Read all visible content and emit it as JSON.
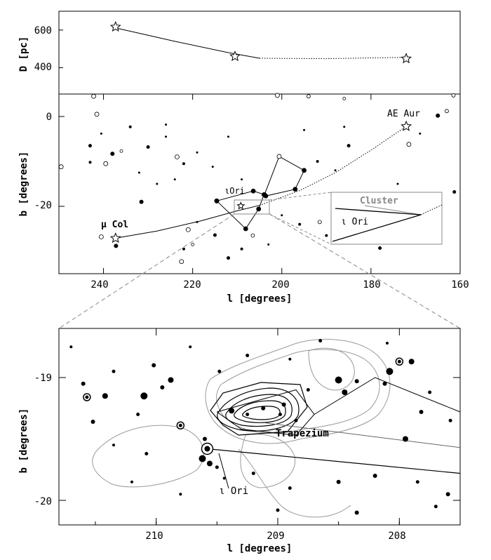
{
  "figure": {
    "panels": {
      "distance": {
        "ylabel": "D [pc]",
        "yticks": [
          "600",
          "400"
        ]
      },
      "sky": {
        "ylabel": "b [degrees]",
        "xlabel": "l [degrees]",
        "xticks": [
          "240",
          "220",
          "200",
          "180",
          "160"
        ],
        "yticks": [
          "0",
          "-20"
        ],
        "labels": {
          "ae_aur": "AE Aur",
          "mu_col": "μ Col",
          "iota_ori": "ιOri"
        },
        "inset": {
          "cluster": "Cluster",
          "iota_ori": "ι Ori"
        }
      },
      "zoom": {
        "ylabel": "b [degrees]",
        "xlabel": "l [degrees]",
        "xticks": [
          "210",
          "209",
          "208"
        ],
        "yticks": [
          "-19",
          "-20"
        ],
        "labels": {
          "trapezium": "Trapezium",
          "iota_ori": "ι Ori"
        }
      }
    }
  },
  "chart_data": [
    {
      "type": "line",
      "panel": "distance",
      "ylabel": "D [pc]",
      "xlim": [
        250,
        160
      ],
      "ylim": [
        260,
        700
      ],
      "series": [
        {
          "style": "solid",
          "x": [
            238,
            224,
            212,
            205
          ],
          "y": [
            615,
            540,
            480,
            450
          ]
        },
        {
          "style": "dotted",
          "x": [
            205,
            190,
            180,
            172
          ],
          "y": [
            450,
            448,
            452,
            455
          ]
        }
      ],
      "stars": [
        {
          "l": 237.3,
          "D": 617
        },
        {
          "l": 210.5,
          "D": 460
        },
        {
          "l": 172.1,
          "D": 448
        }
      ]
    },
    {
      "type": "scatter",
      "panel": "sky",
      "xlabel": "l [degrees]",
      "ylabel": "b [degrees]",
      "xlim": [
        250,
        160
      ],
      "ylim": [
        -35,
        5
      ],
      "xticks": [
        240,
        220,
        200,
        180,
        160
      ],
      "yticks": [
        0,
        -20
      ],
      "track": {
        "solid": {
          "l": [
            237.3,
            228,
            218,
            210,
            205
          ],
          "b": [
            -27.1,
            -25.5,
            -23.2,
            -21.0,
            -19.8
          ]
        },
        "dotted": {
          "l": [
            205,
            196,
            188,
            180,
            172.1
          ],
          "b": [
            -19.8,
            -16.5,
            -12.5,
            -7.5,
            -2.2
          ]
        }
      },
      "stars": [
        {
          "label": "AE Aur",
          "l": 172.1,
          "b": -2.2
        },
        {
          "label": "μ Col",
          "l": 237.3,
          "b": -27.1
        },
        {
          "label": "",
          "l": 209.2,
          "b": -19.9
        }
      ],
      "orion_lines": [
        {
          "l": [
            214.6,
            206.4,
            203.9,
            200.6,
            195.0,
            197.0,
            203.6
          ],
          "b": [
            -18.8,
            -16.6,
            -17.4,
            -8.9,
            -12.0,
            -16.2,
            -17.7
          ]
        },
        {
          "l": [
            214.6,
            208.1,
            205.2,
            204.0
          ],
          "b": [
            -18.8,
            -25.0,
            -20.6,
            -17.4
          ]
        }
      ],
      "dots": [
        {
          "l": 243,
          "b": -6.5,
          "s": 2.5
        },
        {
          "l": 238,
          "b": -8.3,
          "s": 3
        },
        {
          "l": 234,
          "b": -2.3,
          "s": 2
        },
        {
          "l": 230,
          "b": -6.8,
          "s": 2.5
        },
        {
          "l": 226,
          "b": -4.5,
          "s": 1.5
        },
        {
          "l": 222,
          "b": -10.5,
          "s": 2
        },
        {
          "l": 228,
          "b": -15,
          "s": 1.5
        },
        {
          "l": 232,
          "b": -12.5,
          "s": 1.5
        },
        {
          "l": 224,
          "b": -14,
          "s": 1.5
        },
        {
          "l": 219,
          "b": -8,
          "s": 1.5
        },
        {
          "l": 209,
          "b": -14,
          "s": 1.5
        },
        {
          "l": 212,
          "b": -4.5,
          "s": 1.5
        },
        {
          "l": 192,
          "b": -10,
          "s": 2
        },
        {
          "l": 188,
          "b": -12,
          "s": 1.5
        },
        {
          "l": 185,
          "b": -6.5,
          "s": 2.5
        },
        {
          "l": 178,
          "b": -19.5,
          "s": 2
        },
        {
          "l": 174,
          "b": -15,
          "s": 1.5
        },
        {
          "l": 178,
          "b": -29.3,
          "s": 2.5
        },
        {
          "l": 166,
          "b": -21,
          "s": 2
        },
        {
          "l": 165,
          "b": 0.2,
          "s": 3
        },
        {
          "l": 169,
          "b": -3.8,
          "s": 1.5
        },
        {
          "l": 161.3,
          "b": -16.8,
          "s": 2.5
        },
        {
          "l": 222,
          "b": -29.5,
          "s": 2
        },
        {
          "l": 219,
          "b": -23.5,
          "s": 1.5
        },
        {
          "l": 215,
          "b": -26.4,
          "s": 2.5
        },
        {
          "l": 212,
          "b": -31.5,
          "s": 2.5
        },
        {
          "l": 209,
          "b": -29.5,
          "s": 2
        },
        {
          "l": 203,
          "b": -28.5,
          "s": 1.5
        },
        {
          "l": 196,
          "b": -24,
          "s": 2
        },
        {
          "l": 200,
          "b": -22,
          "s": 1.5
        },
        {
          "l": 190,
          "b": -26.5,
          "s": 2
        },
        {
          "l": 186,
          "b": -2.3,
          "s": 1.5
        },
        {
          "l": 195,
          "b": -3,
          "s": 1.5
        },
        {
          "l": 237.2,
          "b": -28.8,
          "s": 3
        },
        {
          "l": 240.5,
          "b": -3.8,
          "s": 1.5
        },
        {
          "l": 243,
          "b": -10.2,
          "s": 2
        },
        {
          "l": 231.5,
          "b": -19,
          "s": 3
        },
        {
          "l": 226,
          "b": -1.8,
          "s": 1.5
        },
        {
          "l": 215.5,
          "b": -11.2,
          "s": 1.5
        }
      ],
      "open_circles": [
        {
          "l": 242.2,
          "b": 4.5,
          "s": 3
        },
        {
          "l": 241.5,
          "b": 0.5,
          "s": 3
        },
        {
          "l": 249.5,
          "b": -11.2,
          "s": 3
        },
        {
          "l": 239.5,
          "b": -10.5,
          "s": 3
        },
        {
          "l": 240.5,
          "b": -26.8,
          "s": 3
        },
        {
          "l": 236,
          "b": -7.7,
          "s": 2
        },
        {
          "l": 223.5,
          "b": -9,
          "s": 3
        },
        {
          "l": 221,
          "b": -25.2,
          "s": 3
        },
        {
          "l": 222.5,
          "b": -32.3,
          "s": 3
        },
        {
          "l": 220,
          "b": -28.5,
          "s": 2
        },
        {
          "l": 206.5,
          "b": -26.5,
          "s": 2.5
        },
        {
          "l": 191.5,
          "b": -23.5,
          "s": 2.5
        },
        {
          "l": 194,
          "b": 4.5,
          "s": 2.5
        },
        {
          "l": 186,
          "b": 4,
          "s": 2
        },
        {
          "l": 171.5,
          "b": -6.2,
          "s": 3
        },
        {
          "l": 163,
          "b": 1.2,
          "s": 2.5
        },
        {
          "l": 161.5,
          "b": 4.7,
          "s": 2.5
        },
        {
          "l": 201,
          "b": 4.7,
          "s": 3
        }
      ]
    },
    {
      "type": "scatter",
      "panel": "zoom",
      "xlabel": "l [degrees]",
      "ylabel": "b [degrees]",
      "xlim": [
        210.8,
        207.5
      ],
      "ylim": [
        -20.2,
        -18.6
      ],
      "xticks": [
        210,
        209,
        208
      ],
      "yticks": [
        -19,
        -20
      ],
      "stars": [
        {
          "label": "Trapezium",
          "l": 209.1,
          "b": -19.37
        },
        {
          "label": "ι Ori",
          "l": 209.52,
          "b": -19.58
        }
      ],
      "dots": [
        {
          "l": 210.42,
          "b": -19.15,
          "s": 4
        },
        {
          "l": 210.6,
          "b": -19.05,
          "s": 3
        },
        {
          "l": 210.1,
          "b": -19.15,
          "s": 5
        },
        {
          "l": 209.95,
          "b": -19.08,
          "s": 3
        },
        {
          "l": 210.02,
          "b": -18.9,
          "s": 3
        },
        {
          "l": 210.35,
          "b": -18.95,
          "s": 2.5
        },
        {
          "l": 209.88,
          "b": -19.02,
          "s": 4
        },
        {
          "l": 210.15,
          "b": -19.3,
          "s": 2.5
        },
        {
          "l": 210.52,
          "b": -19.36,
          "s": 3
        },
        {
          "l": 210.08,
          "b": -19.62,
          "s": 2.5
        },
        {
          "l": 209.6,
          "b": -19.5,
          "s": 3
        },
        {
          "l": 209.62,
          "b": -19.66,
          "s": 5
        },
        {
          "l": 209.56,
          "b": -19.7,
          "s": 4
        },
        {
          "l": 209.5,
          "b": -19.73,
          "s": 2.5
        },
        {
          "l": 209.44,
          "b": -19.82,
          "s": 2
        },
        {
          "l": 209.12,
          "b": -19.25,
          "s": 3
        },
        {
          "l": 208.95,
          "b": -19.22,
          "s": 3
        },
        {
          "l": 208.98,
          "b": -19.3,
          "s": 2.5
        },
        {
          "l": 208.85,
          "b": -19.35,
          "s": 2.5
        },
        {
          "l": 208.75,
          "b": -19.1,
          "s": 2.5
        },
        {
          "l": 208.5,
          "b": -19.02,
          "s": 5
        },
        {
          "l": 208.45,
          "b": -19.12,
          "s": 4
        },
        {
          "l": 208.35,
          "b": -19.03,
          "s": 3
        },
        {
          "l": 208.08,
          "b": -18.95,
          "s": 5
        },
        {
          "l": 207.9,
          "b": -18.87,
          "s": 4
        },
        {
          "l": 208.12,
          "b": -19.05,
          "s": 3
        },
        {
          "l": 207.75,
          "b": -19.12,
          "s": 2.5
        },
        {
          "l": 207.82,
          "b": -19.28,
          "s": 3
        },
        {
          "l": 207.58,
          "b": -19.35,
          "s": 2.5
        },
        {
          "l": 207.95,
          "b": -19.5,
          "s": 4
        },
        {
          "l": 207.85,
          "b": -19.85,
          "s": 2.5
        },
        {
          "l": 208.2,
          "b": -19.8,
          "s": 3
        },
        {
          "l": 208.5,
          "b": -19.85,
          "s": 3
        },
        {
          "l": 208.9,
          "b": -19.9,
          "s": 2.5
        },
        {
          "l": 209.2,
          "b": -19.78,
          "s": 2.5
        },
        {
          "l": 209.0,
          "b": -20.08,
          "s": 2.5
        },
        {
          "l": 208.35,
          "b": -20.1,
          "s": 3
        },
        {
          "l": 207.7,
          "b": -20.05,
          "s": 2.5
        },
        {
          "l": 207.6,
          "b": -19.95,
          "s": 3
        },
        {
          "l": 210.35,
          "b": -19.55,
          "s": 2
        },
        {
          "l": 210.2,
          "b": -19.85,
          "s": 2
        },
        {
          "l": 209.8,
          "b": -19.95,
          "s": 2
        },
        {
          "l": 209.48,
          "b": -18.95,
          "s": 2.5
        },
        {
          "l": 209.25,
          "b": -18.82,
          "s": 2.5
        },
        {
          "l": 208.9,
          "b": -18.85,
          "s": 2
        },
        {
          "l": 208.65,
          "b": -18.7,
          "s": 2.5
        },
        {
          "l": 208.1,
          "b": -18.72,
          "s": 2
        },
        {
          "l": 209.72,
          "b": -18.75,
          "s": 2
        },
        {
          "l": 210.7,
          "b": -18.75,
          "s": 2
        },
        {
          "l": 209.38,
          "b": -19.27,
          "s": 4
        },
        {
          "l": 209.25,
          "b": -19.3,
          "s": 2.5
        }
      ],
      "open_circles": [
        {
          "l": 210.57,
          "b": -19.16,
          "s": 5
        },
        {
          "l": 209.8,
          "b": -19.39,
          "s": 5
        },
        {
          "l": 209.58,
          "b": -19.58,
          "s": 8
        },
        {
          "l": 208.0,
          "b": -18.87,
          "s": 5
        }
      ],
      "outline_lines": [
        {
          "l": [
            209.5,
            208.85,
            208.7,
            208.85,
            209.3,
            209.5
          ],
          "b": [
            -19.28,
            -19.1,
            -19.3,
            -19.47,
            -19.42,
            -19.28
          ]
        },
        {
          "l": [
            208.7,
            208.2,
            207.5
          ],
          "b": [
            -19.3,
            -19.0,
            -19.28
          ]
        }
      ]
    }
  ]
}
